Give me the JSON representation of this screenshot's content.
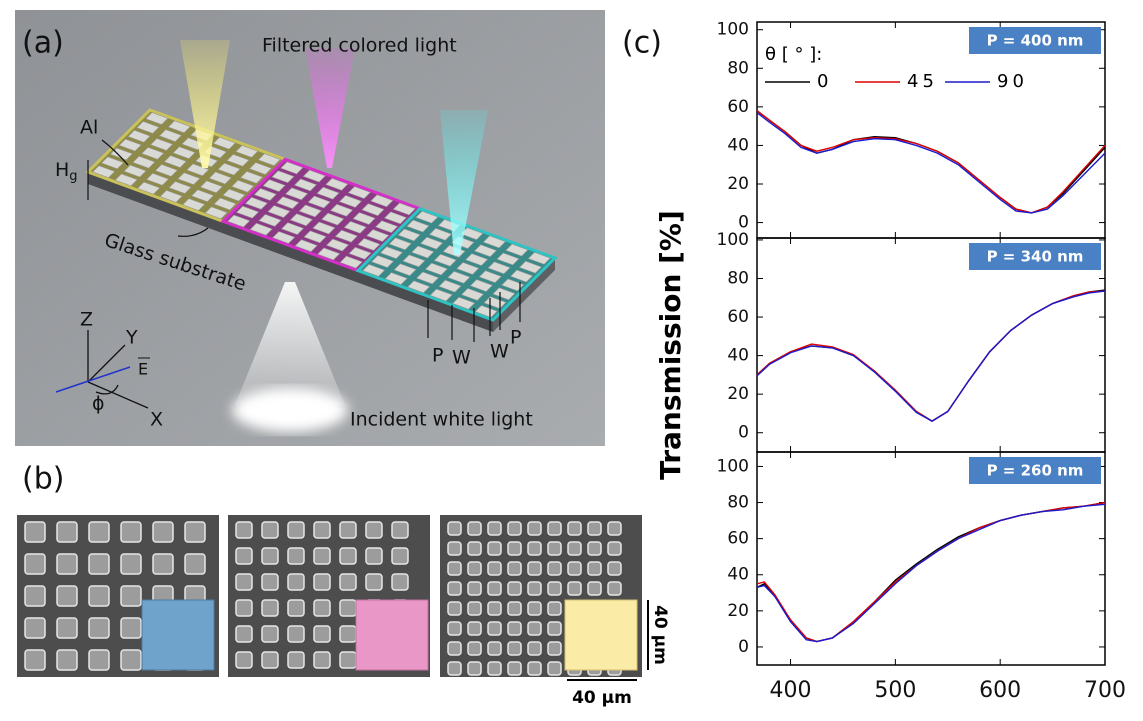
{
  "panel_a": {
    "label": "(a)",
    "top_text": "Filtered colored light",
    "metal": "Al",
    "height": "H",
    "height_sub": "g",
    "substrate": "Glass substrate",
    "axis_z": "Z",
    "axis_y": "Y",
    "field": "E",
    "angle": "ϕ",
    "axis_x": "X",
    "period_1": "P",
    "width_1": "W",
    "width_2": "W",
    "period_2": "P",
    "bottom_text": "Incident white light"
  },
  "panel_b": {
    "label": "(b)",
    "scale_vertical": "40 µm",
    "scale_horizontal": "40 µm"
  },
  "panel_c": {
    "label": "(c)"
  },
  "chart_data": [
    {
      "type": "line",
      "annotation": "P = 400 nm",
      "ylabel": "Transmission [%]",
      "legend_title": "θ [ ° ]:",
      "x": [
        368,
        380,
        395,
        410,
        425,
        440,
        460,
        480,
        500,
        520,
        540,
        560,
        580,
        600,
        615,
        630,
        645,
        660,
        680,
        700
      ],
      "series": [
        {
          "name": "0",
          "color": "#000000",
          "values": [
            58,
            53,
            47,
            40,
            36,
            38,
            43,
            44.5,
            44,
            41,
            37,
            31,
            22,
            13,
            7,
            5,
            8,
            15,
            27,
            39
          ]
        },
        {
          "name": "45",
          "color": "#e00000",
          "values": [
            58,
            53,
            47,
            40,
            37,
            39,
            43,
            44,
            43.5,
            41,
            37,
            31,
            22,
            13,
            7,
            5,
            8,
            16,
            28,
            40
          ]
        },
        {
          "name": "90",
          "color": "#1a1ad0",
          "values": [
            57,
            52,
            46,
            39,
            36,
            38,
            42,
            43.5,
            43,
            40,
            36,
            30,
            21,
            12,
            6,
            5,
            7,
            14,
            25,
            36
          ]
        }
      ],
      "xlim": [
        368,
        700
      ],
      "ylim": [
        -8,
        104
      ],
      "yticks": [
        0,
        20,
        40,
        60,
        80,
        100
      ]
    },
    {
      "type": "line",
      "annotation": "P = 340 nm",
      "x": [
        368,
        380,
        400,
        420,
        440,
        460,
        480,
        500,
        520,
        535,
        550,
        570,
        590,
        610,
        630,
        650,
        670,
        685,
        700
      ],
      "series": [
        {
          "color": "#000000",
          "values": [
            30,
            36,
            42,
            45,
            44,
            40,
            32,
            22,
            11,
            6,
            11,
            27,
            42,
            53,
            61,
            67,
            71,
            73,
            74
          ]
        },
        {
          "color": "#e00000",
          "values": [
            30,
            36,
            42,
            46,
            44.5,
            40.5,
            32,
            22,
            11,
            6,
            11,
            27,
            42,
            53,
            61,
            67,
            71,
            73,
            73.5
          ]
        },
        {
          "color": "#1a1ad0",
          "values": [
            29.5,
            35.5,
            41.5,
            45,
            44,
            40,
            31.5,
            21.5,
            10.5,
            6,
            11,
            27,
            42,
            53,
            61,
            67,
            70.5,
            72.5,
            73.5
          ]
        }
      ],
      "xlim": [
        368,
        700
      ],
      "ylim": [
        -10,
        101
      ],
      "yticks": [
        0,
        20,
        40,
        60,
        80,
        100
      ]
    },
    {
      "type": "line",
      "annotation": "P = 260 nm",
      "x": [
        368,
        375,
        385,
        400,
        415,
        425,
        440,
        460,
        480,
        500,
        520,
        540,
        560,
        580,
        600,
        620,
        640,
        660,
        680,
        700
      ],
      "series": [
        {
          "color": "#000000",
          "values": [
            33,
            35,
            28,
            15,
            5,
            3,
            5,
            14,
            25,
            37,
            46,
            54,
            61,
            66,
            70,
            73,
            75,
            77,
            78,
            80
          ]
        },
        {
          "color": "#e00000",
          "values": [
            35,
            36,
            29,
            15,
            5,
            3,
            5,
            14,
            25,
            36,
            45,
            53,
            60,
            66,
            70,
            73,
            75,
            77,
            78,
            80
          ]
        },
        {
          "color": "#1a1ad0",
          "values": [
            33,
            34,
            28,
            14,
            4,
            3,
            5,
            13,
            24,
            35,
            45,
            53,
            60,
            65,
            70,
            73,
            75,
            76,
            78,
            79
          ]
        }
      ],
      "xlim": [
        368,
        700
      ],
      "ylim": [
        -10,
        108
      ],
      "yticks": [
        0,
        20,
        40,
        60,
        80,
        100
      ],
      "xticks": [
        400,
        500,
        600,
        700
      ]
    }
  ]
}
